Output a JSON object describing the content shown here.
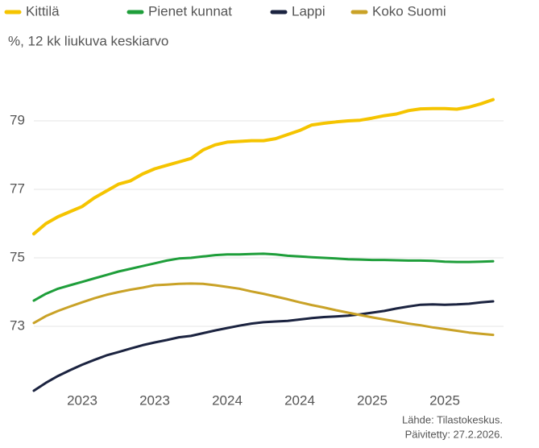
{
  "chart_data": {
    "type": "line",
    "subtitle": "%, 12 kk liukuva keskiarvo",
    "categories": [
      null,
      null,
      null,
      null,
      "2023",
      null,
      null,
      null,
      null,
      null,
      "2023",
      null,
      null,
      null,
      null,
      null,
      "2024",
      null,
      null,
      null,
      null,
      null,
      "2024",
      null,
      null,
      null,
      null,
      null,
      "2025",
      null,
      null,
      null,
      null,
      null,
      "2025",
      null,
      null,
      null,
      null
    ],
    "series": [
      {
        "name": "Kittilä",
        "color": "#f5c400",
        "values": [
          75.7,
          76.0,
          76.2,
          76.35,
          76.5,
          76.75,
          76.95,
          77.15,
          77.25,
          77.45,
          77.6,
          77.7,
          77.8,
          77.9,
          78.15,
          78.3,
          78.38,
          78.4,
          78.42,
          78.42,
          78.48,
          78.6,
          78.72,
          78.88,
          78.93,
          78.97,
          79.0,
          79.02,
          79.08,
          79.15,
          79.2,
          79.3,
          79.35,
          79.36,
          79.36,
          79.34,
          79.4,
          79.5,
          79.62
        ]
      },
      {
        "name": "Pienet kunnat",
        "color": "#1e9e3a",
        "values": [
          73.75,
          73.95,
          74.1,
          74.2,
          74.3,
          74.4,
          74.5,
          74.6,
          74.68,
          74.76,
          74.84,
          74.92,
          74.98,
          75.0,
          75.04,
          75.08,
          75.1,
          75.1,
          75.11,
          75.12,
          75.1,
          75.06,
          75.04,
          75.02,
          75.0,
          74.98,
          74.96,
          74.95,
          74.94,
          74.94,
          74.93,
          74.92,
          74.92,
          74.91,
          74.89,
          74.88,
          74.88,
          74.89,
          74.9
        ]
      },
      {
        "name": "Lappi",
        "color": "#1b2340",
        "values": [
          71.12,
          71.35,
          71.55,
          71.72,
          71.88,
          72.02,
          72.15,
          72.25,
          72.35,
          72.45,
          72.53,
          72.6,
          72.68,
          72.72,
          72.8,
          72.88,
          72.95,
          73.02,
          73.08,
          73.12,
          73.14,
          73.16,
          73.2,
          73.24,
          73.27,
          73.29,
          73.31,
          73.35,
          73.4,
          73.45,
          73.52,
          73.58,
          73.63,
          73.64,
          73.63,
          73.64,
          73.66,
          73.7,
          73.73
        ]
      },
      {
        "name": "Koko Suomi",
        "color": "#c9a227",
        "values": [
          73.1,
          73.3,
          73.45,
          73.58,
          73.7,
          73.82,
          73.92,
          74.0,
          74.07,
          74.13,
          74.2,
          74.22,
          74.24,
          74.25,
          74.24,
          74.2,
          74.15,
          74.1,
          74.02,
          73.95,
          73.87,
          73.79,
          73.7,
          73.62,
          73.55,
          73.47,
          73.4,
          73.33,
          73.26,
          73.2,
          73.14,
          73.08,
          73.03,
          72.97,
          72.92,
          72.87,
          72.82,
          72.78,
          72.75
        ]
      }
    ],
    "ylim": [
      71,
      81
    ],
    "yticks": [
      73,
      75,
      77,
      79
    ],
    "grid": true,
    "legend": "top",
    "source": "Lähde: Tilastokeskus.",
    "updated": "Päivitetty: 27.2.2026."
  }
}
